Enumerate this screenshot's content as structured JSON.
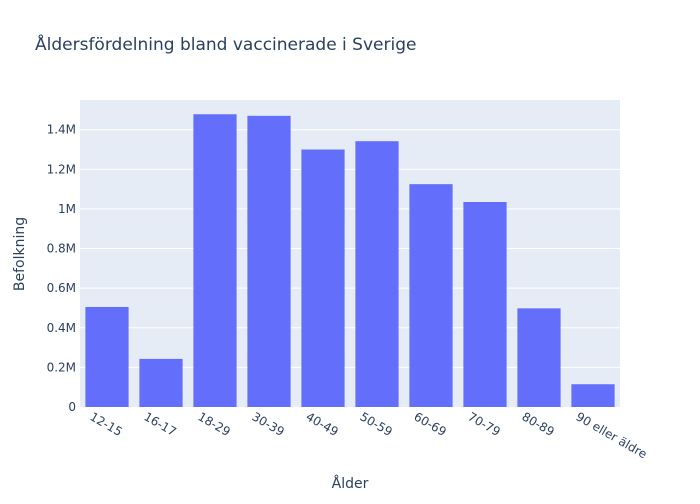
{
  "chart_data": {
    "type": "bar",
    "title": "Åldersfördelning bland vaccinerade i Sverige",
    "xlabel": "Ålder",
    "ylabel": "Befolkning",
    "categories": [
      "12-15",
      "16-17",
      "18-29",
      "30-39",
      "40-49",
      "50-59",
      "60-69",
      "70-79",
      "80-89",
      "90 eller äldre"
    ],
    "values": [
      505000,
      243000,
      1478000,
      1470000,
      1300000,
      1342000,
      1125000,
      1035000,
      498000,
      115000
    ],
    "ylim": [
      0,
      1550000
    ],
    "yticks": [
      {
        "value": 0,
        "label": "0"
      },
      {
        "value": 200000,
        "label": "0.2M"
      },
      {
        "value": 400000,
        "label": "0.4M"
      },
      {
        "value": 600000,
        "label": "0.6M"
      },
      {
        "value": 800000,
        "label": "0.8M"
      },
      {
        "value": 1000000,
        "label": "1M"
      },
      {
        "value": 1200000,
        "label": "1.2M"
      },
      {
        "value": 1400000,
        "label": "1.4M"
      }
    ],
    "grid": true,
    "colors": {
      "bar": "#636efa",
      "plot_background": "#e5ecf6",
      "grid": "#ffffff",
      "text": "#2a3f5f"
    }
  }
}
